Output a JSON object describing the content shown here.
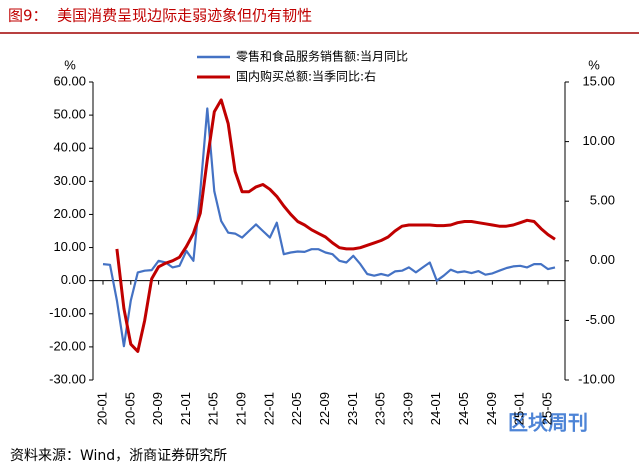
{
  "chart_data": {
    "type": "line",
    "title": "图9：  美国消费呈现边际走弱迹象但仍有韧性",
    "source": "资料来源：Wind，浙商证券研究所",
    "watermark": "区块周刊",
    "ylabel": "%",
    "y2label": "%",
    "categories": [
      "20-01",
      null,
      null,
      null,
      "20-05",
      null,
      null,
      null,
      "20-09",
      null,
      null,
      null,
      "21-01",
      null,
      null,
      null,
      "21-05",
      null,
      null,
      null,
      "21-09",
      null,
      null,
      null,
      "22-01",
      null,
      null,
      null,
      "22-05",
      null,
      null,
      null,
      "22-09",
      null,
      null,
      null,
      "23-01",
      null,
      null,
      null,
      "23-05",
      null,
      null,
      null,
      "23-09",
      null,
      null,
      null,
      "24-01",
      null,
      null,
      null,
      "24-05",
      null,
      null,
      null,
      "24-09",
      null,
      null,
      null,
      "25-01",
      null,
      null,
      null,
      "25-05",
      null
    ],
    "series": [
      {
        "name": "零售和食品服务销售额:当月同比",
        "color": "#4472c4",
        "axis": "y",
        "values": [
          5,
          4.8,
          -6,
          -19.8,
          -6,
          2.5,
          3,
          3.2,
          6,
          5.5,
          4,
          4.5,
          9,
          6,
          27,
          52,
          27,
          18,
          14.5,
          14.2,
          13,
          15,
          17,
          15,
          13,
          17.5,
          8,
          8.5,
          8.8,
          8.7,
          9.5,
          9.5,
          8.5,
          8,
          6,
          5.5,
          7.5,
          5,
          2,
          1.5,
          2,
          1.5,
          2.8,
          3,
          4,
          2.5,
          4,
          5.5,
          0,
          1.5,
          3.3,
          2.5,
          2.8,
          2.3,
          2.9,
          1.8,
          2.2,
          3,
          3.8,
          4.3,
          4.5,
          4,
          5,
          5,
          3.5,
          4
        ]
      },
      {
        "name": "国内购买总额:当季同比:右",
        "color": "#c00000",
        "axis": "y2",
        "values": [
          null,
          null,
          1.0,
          -4,
          -7,
          -7.6,
          -5,
          -1.5,
          -0.5,
          -0.2,
          0.0,
          0.3,
          1.2,
          2.3,
          4.0,
          8.5,
          12.5,
          13.5,
          11.5,
          7.5,
          5.8,
          5.8,
          6.2,
          6.4,
          6.0,
          5.4,
          4.6,
          3.9,
          3.3,
          3.0,
          2.6,
          2.3,
          2.0,
          1.5,
          1.1,
          1.0,
          1.0,
          1.1,
          1.3,
          1.5,
          1.7,
          2.0,
          2.5,
          2.9,
          3.0,
          3.0,
          3.0,
          3.0,
          2.95,
          2.95,
          3.0,
          3.2,
          3.3,
          3.3,
          3.2,
          3.1,
          3.0,
          2.9,
          2.9,
          3.0,
          3.2,
          3.4,
          3.3,
          2.7,
          2.2,
          1.8
        ]
      }
    ],
    "ylim": [
      -30,
      60
    ],
    "yticks": [
      {
        "value": 60,
        "label": "60.00"
      },
      {
        "value": 50,
        "label": "50.00"
      },
      {
        "value": 40,
        "label": "40.00"
      },
      {
        "value": 30,
        "label": "30.00"
      },
      {
        "value": 20,
        "label": "20.00"
      },
      {
        "value": 10,
        "label": "10.00"
      },
      {
        "value": 0,
        "label": "0.00"
      },
      {
        "value": -10,
        "label": "-10.00"
      },
      {
        "value": -20,
        "label": "-20.00"
      },
      {
        "value": -30,
        "label": "-30.00"
      }
    ],
    "y2lim": [
      -10,
      15
    ],
    "y2ticks": [
      {
        "value": 15,
        "label": "15.00"
      },
      {
        "value": 10,
        "label": "10.00"
      },
      {
        "value": 5,
        "label": "5.00"
      },
      {
        "value": 0,
        "label": "0.00"
      },
      {
        "value": -5,
        "label": "-5.00"
      },
      {
        "value": -10,
        "label": "-10.00"
      }
    ]
  }
}
